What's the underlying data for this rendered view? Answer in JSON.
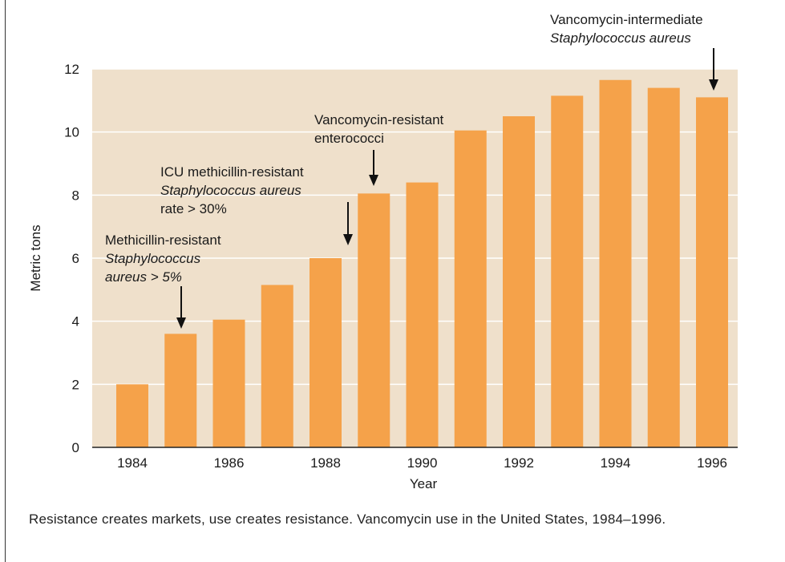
{
  "chart_data": {
    "type": "bar",
    "categories": [
      "1984",
      "1985",
      "1986",
      "1987",
      "1988",
      "1989",
      "1990",
      "1991",
      "1992",
      "1993",
      "1994",
      "1995",
      "1996"
    ],
    "values": [
      2.0,
      3.6,
      4.05,
      5.15,
      6.0,
      8.05,
      8.4,
      10.05,
      10.5,
      11.15,
      11.65,
      11.4,
      11.1
    ],
    "xtick_labels": [
      "1984",
      "1986",
      "1988",
      "1990",
      "1992",
      "1994",
      "1996"
    ],
    "yticks": [
      "0",
      "2",
      "4",
      "6",
      "8",
      "10",
      "12"
    ],
    "ylim": [
      0,
      12
    ],
    "xlabel": "Year",
    "ylabel": "Metric tons",
    "bar_color": "#F5A24A",
    "plot_background": "#EFE0CB",
    "gridlines": true,
    "annotations": [
      {
        "lines": [
          "Methicillin-resistant",
          "Staphylococcus",
          "aureus > 5%"
        ],
        "points_to": "1985"
      },
      {
        "lines": [
          "ICU methicillin-resistant",
          "Staphylococcus aureus",
          "rate > 30%"
        ],
        "points_to": "1988"
      },
      {
        "lines": [
          "Vancomycin-resistant",
          "enterococci"
        ],
        "points_to": "1989"
      },
      {
        "lines": [
          "Vancomycin-intermediate",
          "Staphylococcus aureus"
        ],
        "points_to": "1996"
      }
    ]
  },
  "caption": "Resistance creates markets, use creates resistance. Vancomycin use in the United States, 1984–1996."
}
